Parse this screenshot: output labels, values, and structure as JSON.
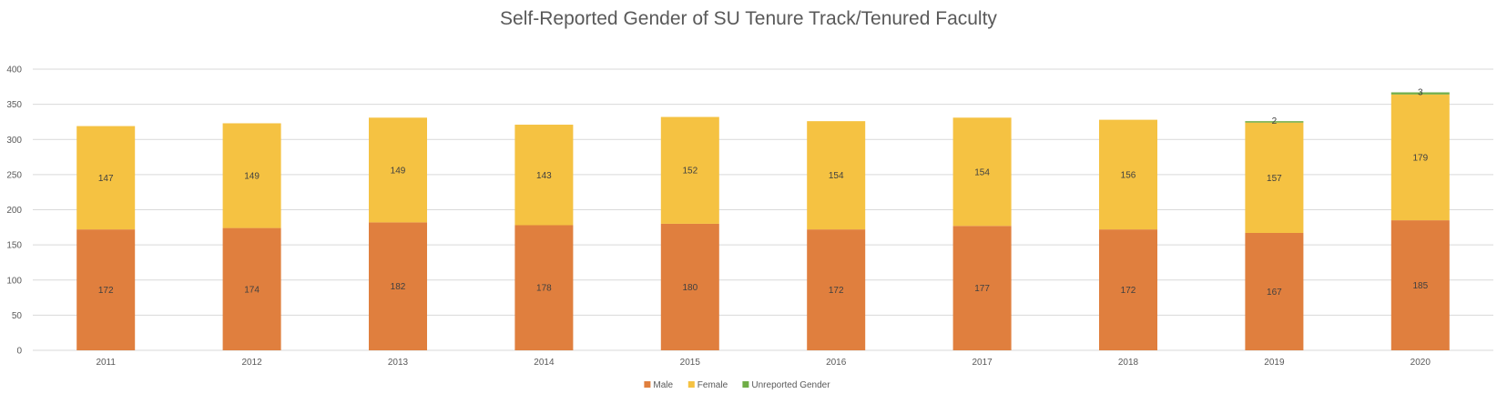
{
  "chart_data": {
    "type": "bar",
    "stacked": true,
    "title": "Self-Reported Gender of SU Tenure Track/Tenured Faculty",
    "categories": [
      "2011",
      "2012",
      "2013",
      "2014",
      "2015",
      "2016",
      "2017",
      "2018",
      "2019",
      "2020"
    ],
    "series": [
      {
        "name": "Male",
        "color": "#E07F3E",
        "values": [
          172,
          174,
          182,
          178,
          180,
          172,
          177,
          172,
          167,
          185
        ]
      },
      {
        "name": "Female",
        "color": "#F5C242",
        "values": [
          147,
          149,
          149,
          143,
          152,
          154,
          154,
          156,
          157,
          179
        ]
      },
      {
        "name": "Unreported Gender",
        "color": "#70AD47",
        "values": [
          null,
          null,
          null,
          null,
          null,
          null,
          null,
          null,
          2,
          3
        ]
      }
    ],
    "yticks": [
      "0",
      "50",
      "100",
      "150",
      "200",
      "250",
      "300",
      "350",
      "400"
    ],
    "ylim": [
      0,
      400
    ],
    "xlabel": "",
    "ylabel": "",
    "grid": true,
    "legend_position": "bottom"
  }
}
